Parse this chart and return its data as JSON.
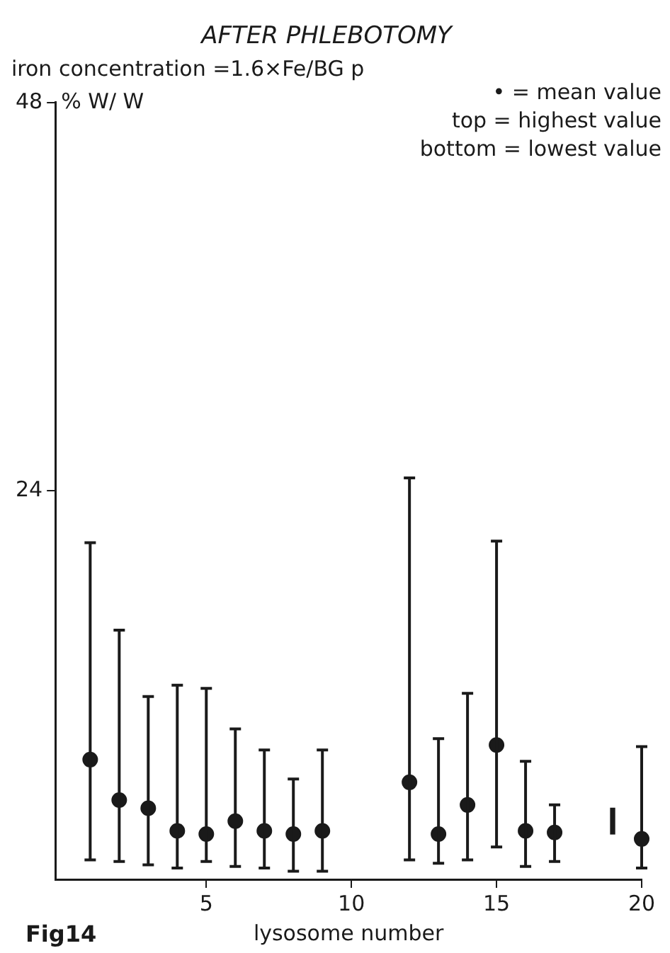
{
  "chart_data": {
    "type": "scatter",
    "title": "AFTER PHLEBOTOMY",
    "subtitle": "iron concentration =1.6×Fe/BG p",
    "ylabel": "% W/ W",
    "xlabel": "lysosome number",
    "annotations": [
      "Fig14",
      "• = mean value",
      "top = highest value",
      "bottom = lowest value"
    ],
    "series": [
      {
        "color": "#1a1a1a",
        "x": [
          1,
          2,
          3,
          4,
          5,
          6,
          7,
          8,
          9,
          12,
          13,
          14,
          15,
          16,
          17,
          20
        ],
        "values": [
          7.4,
          4.9,
          4.4,
          3.0,
          2.8,
          3.6,
          3.0,
          2.8,
          3.0,
          6.0,
          2.8,
          4.6,
          8.3,
          3.0,
          2.9,
          2.5
        ],
        "errors": [
          [
            1.2,
            20.8
          ],
          [
            1.1,
            15.4
          ],
          [
            0.9,
            11.3
          ],
          [
            0.7,
            12.0
          ],
          [
            1.1,
            11.8
          ],
          [
            0.8,
            9.3
          ],
          [
            0.7,
            8.0
          ],
          [
            0.5,
            6.2
          ],
          [
            0.5,
            8.0
          ],
          [
            1.2,
            24.8
          ],
          [
            1.0,
            8.7
          ],
          [
            1.2,
            11.5
          ],
          [
            2.0,
            20.9
          ],
          [
            0.8,
            7.3
          ],
          [
            1.1,
            4.6
          ],
          [
            0.7,
            8.2
          ]
        ]
      },
      {
        "type": "bar",
        "color": "#1a1a1a",
        "x": [
          19
        ],
        "base": [
          2.8
        ],
        "values": [
          1.6
        ]
      }
    ],
    "marker": "circle",
    "grid": false,
    "legend": false,
    "xlim": [
      -0.2,
      20
    ],
    "ylim": [
      0,
      48
    ],
    "xticks": [
      5,
      10,
      15,
      20
    ],
    "yticks": [
      24,
      48
    ]
  }
}
